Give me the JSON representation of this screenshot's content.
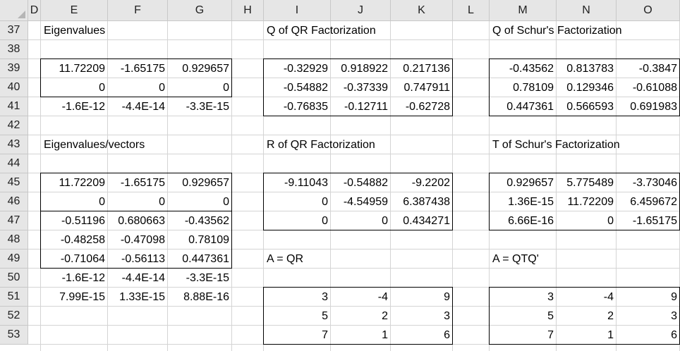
{
  "columns": [
    "D",
    "E",
    "F",
    "G",
    "H",
    "I",
    "J",
    "K",
    "L",
    "M",
    "N",
    "O"
  ],
  "rows": [
    "37",
    "38",
    "39",
    "40",
    "41",
    "42",
    "43",
    "44",
    "45",
    "46",
    "47",
    "48",
    "49",
    "50",
    "51",
    "52",
    "53"
  ],
  "cells": [
    {
      "col": "E",
      "row": "37",
      "value": "Eigenvalues",
      "type": "text"
    },
    {
      "col": "I",
      "row": "37",
      "value": "Q of QR Factorization",
      "type": "text"
    },
    {
      "col": "M",
      "row": "37",
      "value": "Q of Schur's Factorization",
      "type": "text"
    },
    {
      "col": "E",
      "row": "39",
      "value": "11.72209",
      "type": "num"
    },
    {
      "col": "F",
      "row": "39",
      "value": "-1.65175",
      "type": "num"
    },
    {
      "col": "G",
      "row": "39",
      "value": "0.929657",
      "type": "num"
    },
    {
      "col": "I",
      "row": "39",
      "value": "-0.32929",
      "type": "num"
    },
    {
      "col": "J",
      "row": "39",
      "value": "0.918922",
      "type": "num"
    },
    {
      "col": "K",
      "row": "39",
      "value": "0.217136",
      "type": "num"
    },
    {
      "col": "M",
      "row": "39",
      "value": "-0.43562",
      "type": "num"
    },
    {
      "col": "N",
      "row": "39",
      "value": "0.813783",
      "type": "num"
    },
    {
      "col": "O",
      "row": "39",
      "value": "-0.3847",
      "type": "num"
    },
    {
      "col": "E",
      "row": "40",
      "value": "0",
      "type": "num"
    },
    {
      "col": "F",
      "row": "40",
      "value": "0",
      "type": "num"
    },
    {
      "col": "G",
      "row": "40",
      "value": "0",
      "type": "num"
    },
    {
      "col": "I",
      "row": "40",
      "value": "-0.54882",
      "type": "num"
    },
    {
      "col": "J",
      "row": "40",
      "value": "-0.37339",
      "type": "num"
    },
    {
      "col": "K",
      "row": "40",
      "value": "0.747911",
      "type": "num"
    },
    {
      "col": "M",
      "row": "40",
      "value": "0.78109",
      "type": "num"
    },
    {
      "col": "N",
      "row": "40",
      "value": "0.129346",
      "type": "num"
    },
    {
      "col": "O",
      "row": "40",
      "value": "-0.61088",
      "type": "num"
    },
    {
      "col": "E",
      "row": "41",
      "value": "-1.6E-12",
      "type": "num"
    },
    {
      "col": "F",
      "row": "41",
      "value": "-4.4E-14",
      "type": "num"
    },
    {
      "col": "G",
      "row": "41",
      "value": "-3.3E-15",
      "type": "num"
    },
    {
      "col": "I",
      "row": "41",
      "value": "-0.76835",
      "type": "num"
    },
    {
      "col": "J",
      "row": "41",
      "value": "-0.12711",
      "type": "num"
    },
    {
      "col": "K",
      "row": "41",
      "value": "-0.62728",
      "type": "num"
    },
    {
      "col": "M",
      "row": "41",
      "value": "0.447361",
      "type": "num"
    },
    {
      "col": "N",
      "row": "41",
      "value": "0.566593",
      "type": "num"
    },
    {
      "col": "O",
      "row": "41",
      "value": "0.691983",
      "type": "num"
    },
    {
      "col": "E",
      "row": "43",
      "value": "Eigenvalues/vectors",
      "type": "text"
    },
    {
      "col": "I",
      "row": "43",
      "value": "R of QR Factorization",
      "type": "text"
    },
    {
      "col": "M",
      "row": "43",
      "value": "T of Schur's Factorization",
      "type": "text"
    },
    {
      "col": "E",
      "row": "45",
      "value": "11.72209",
      "type": "num"
    },
    {
      "col": "F",
      "row": "45",
      "value": "-1.65175",
      "type": "num"
    },
    {
      "col": "G",
      "row": "45",
      "value": "0.929657",
      "type": "num"
    },
    {
      "col": "I",
      "row": "45",
      "value": "-9.11043",
      "type": "num"
    },
    {
      "col": "J",
      "row": "45",
      "value": "-0.54882",
      "type": "num"
    },
    {
      "col": "K",
      "row": "45",
      "value": "-9.2202",
      "type": "num"
    },
    {
      "col": "M",
      "row": "45",
      "value": "0.929657",
      "type": "num"
    },
    {
      "col": "N",
      "row": "45",
      "value": "5.775489",
      "type": "num"
    },
    {
      "col": "O",
      "row": "45",
      "value": "-3.73046",
      "type": "num"
    },
    {
      "col": "E",
      "row": "46",
      "value": "0",
      "type": "num"
    },
    {
      "col": "F",
      "row": "46",
      "value": "0",
      "type": "num"
    },
    {
      "col": "G",
      "row": "46",
      "value": "0",
      "type": "num"
    },
    {
      "col": "I",
      "row": "46",
      "value": "0",
      "type": "num"
    },
    {
      "col": "J",
      "row": "46",
      "value": "-4.54959",
      "type": "num"
    },
    {
      "col": "K",
      "row": "46",
      "value": "6.387438",
      "type": "num"
    },
    {
      "col": "M",
      "row": "46",
      "value": "1.36E-15",
      "type": "num"
    },
    {
      "col": "N",
      "row": "46",
      "value": "11.72209",
      "type": "num"
    },
    {
      "col": "O",
      "row": "46",
      "value": "6.459672",
      "type": "num"
    },
    {
      "col": "E",
      "row": "47",
      "value": "-0.51196",
      "type": "num"
    },
    {
      "col": "F",
      "row": "47",
      "value": "0.680663",
      "type": "num"
    },
    {
      "col": "G",
      "row": "47",
      "value": "-0.43562",
      "type": "num"
    },
    {
      "col": "I",
      "row": "47",
      "value": "0",
      "type": "num"
    },
    {
      "col": "J",
      "row": "47",
      "value": "0",
      "type": "num"
    },
    {
      "col": "K",
      "row": "47",
      "value": "0.434271",
      "type": "num"
    },
    {
      "col": "M",
      "row": "47",
      "value": "6.66E-16",
      "type": "num"
    },
    {
      "col": "N",
      "row": "47",
      "value": "0",
      "type": "num"
    },
    {
      "col": "O",
      "row": "47",
      "value": "-1.65175",
      "type": "num"
    },
    {
      "col": "E",
      "row": "48",
      "value": "-0.48258",
      "type": "num"
    },
    {
      "col": "F",
      "row": "48",
      "value": "-0.47098",
      "type": "num"
    },
    {
      "col": "G",
      "row": "48",
      "value": "0.78109",
      "type": "num"
    },
    {
      "col": "E",
      "row": "49",
      "value": "-0.71064",
      "type": "num"
    },
    {
      "col": "F",
      "row": "49",
      "value": "-0.56113",
      "type": "num"
    },
    {
      "col": "G",
      "row": "49",
      "value": "0.447361",
      "type": "num"
    },
    {
      "col": "I",
      "row": "49",
      "value": "A = QR",
      "type": "text"
    },
    {
      "col": "M",
      "row": "49",
      "value": "A = QTQ'",
      "type": "text"
    },
    {
      "col": "E",
      "row": "50",
      "value": "-1.6E-12",
      "type": "num"
    },
    {
      "col": "F",
      "row": "50",
      "value": "-4.4E-14",
      "type": "num"
    },
    {
      "col": "G",
      "row": "50",
      "value": "-3.3E-15",
      "type": "num"
    },
    {
      "col": "E",
      "row": "51",
      "value": "7.99E-15",
      "type": "num"
    },
    {
      "col": "F",
      "row": "51",
      "value": "1.33E-15",
      "type": "num"
    },
    {
      "col": "G",
      "row": "51",
      "value": "8.88E-16",
      "type": "num"
    },
    {
      "col": "I",
      "row": "51",
      "value": "3",
      "type": "num"
    },
    {
      "col": "J",
      "row": "51",
      "value": "-4",
      "type": "num"
    },
    {
      "col": "K",
      "row": "51",
      "value": "9",
      "type": "num"
    },
    {
      "col": "M",
      "row": "51",
      "value": "3",
      "type": "num"
    },
    {
      "col": "N",
      "row": "51",
      "value": "-4",
      "type": "num"
    },
    {
      "col": "O",
      "row": "51",
      "value": "9",
      "type": "num"
    },
    {
      "col": "I",
      "row": "52",
      "value": "5",
      "type": "num"
    },
    {
      "col": "J",
      "row": "52",
      "value": "2",
      "type": "num"
    },
    {
      "col": "K",
      "row": "52",
      "value": "3",
      "type": "num"
    },
    {
      "col": "M",
      "row": "52",
      "value": "5",
      "type": "num"
    },
    {
      "col": "N",
      "row": "52",
      "value": "2",
      "type": "num"
    },
    {
      "col": "O",
      "row": "52",
      "value": "3",
      "type": "num"
    },
    {
      "col": "I",
      "row": "53",
      "value": "7",
      "type": "num"
    },
    {
      "col": "J",
      "row": "53",
      "value": "1",
      "type": "num"
    },
    {
      "col": "K",
      "row": "53",
      "value": "6",
      "type": "num"
    },
    {
      "col": "M",
      "row": "53",
      "value": "7",
      "type": "num"
    },
    {
      "col": "N",
      "row": "53",
      "value": "1",
      "type": "num"
    },
    {
      "col": "O",
      "row": "53",
      "value": "6",
      "type": "num"
    }
  ],
  "bordered_ranges": [
    {
      "from": "E39",
      "to": "G40"
    },
    {
      "from": "I39",
      "to": "K41"
    },
    {
      "from": "M39",
      "to": "O41"
    },
    {
      "from": "E45",
      "to": "G49",
      "divider_after_row": "46"
    },
    {
      "from": "I45",
      "to": "K47"
    },
    {
      "from": "M45",
      "to": "O47"
    },
    {
      "from": "I51",
      "to": "K53"
    },
    {
      "from": "M51",
      "to": "O53"
    }
  ],
  "colors": {
    "header_bg": "#e6e6e6",
    "gridline": "#d4d4d4",
    "border": "#000000"
  }
}
